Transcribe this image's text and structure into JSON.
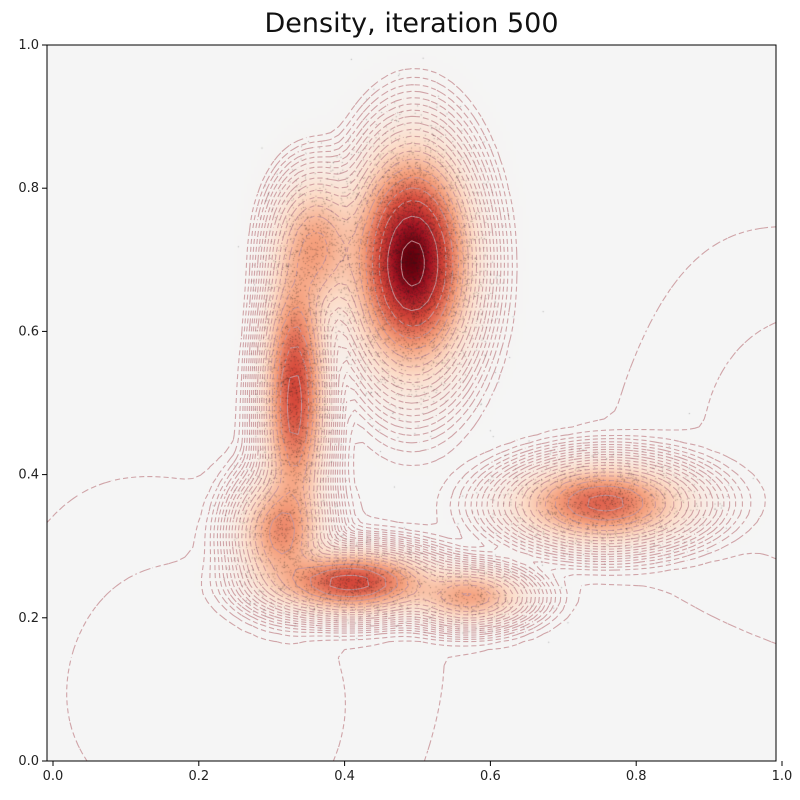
{
  "chart_data": {
    "type": "heatmap",
    "title": "Density, iteration 500",
    "xlabel": "",
    "ylabel": "",
    "xlim": [
      0,
      1
    ],
    "ylim": [
      0,
      1
    ],
    "x_ticks": [
      "0.0",
      "0.2",
      "0.4",
      "0.6",
      "0.8",
      "1.0"
    ],
    "y_ticks": [
      "0.0",
      "0.2",
      "0.4",
      "0.6",
      "0.8",
      "1.0"
    ],
    "grid": false,
    "colormap": "Reds",
    "contour_color": "#c9959a",
    "background_color": "#f5f5f5",
    "density_components": [
      {
        "cx": 0.5,
        "cy": 0.7,
        "sx": 0.04,
        "sy": 0.075,
        "weight": 1.0
      },
      {
        "cx": 0.42,
        "cy": 0.25,
        "sx": 0.055,
        "sy": 0.022,
        "weight": 0.55
      },
      {
        "cx": 0.76,
        "cy": 0.36,
        "sx": 0.06,
        "sy": 0.028,
        "weight": 0.45
      },
      {
        "cx": 0.34,
        "cy": 0.52,
        "sx": 0.022,
        "sy": 0.09,
        "weight": 0.55
      },
      {
        "cx": 0.32,
        "cy": 0.32,
        "sx": 0.03,
        "sy": 0.04,
        "weight": 0.3
      },
      {
        "cx": 0.58,
        "cy": 0.23,
        "sx": 0.04,
        "sy": 0.02,
        "weight": 0.25
      },
      {
        "cx": 0.37,
        "cy": 0.72,
        "sx": 0.03,
        "sy": 0.05,
        "weight": 0.25
      }
    ],
    "samples_color": "#222222"
  }
}
